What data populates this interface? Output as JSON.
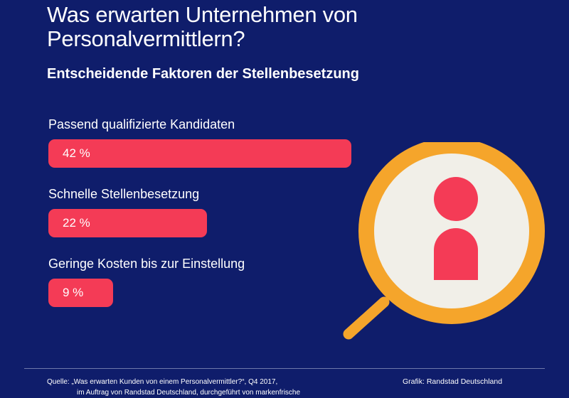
{
  "header": {
    "title": "Was erwarten Unternehmen von Personalvermittlern?",
    "subtitle": "Entscheidende Faktoren der Stellenbesetzung"
  },
  "colors": {
    "background": "#0f1d6b",
    "bar": "#f43b56",
    "lens_ring": "#f5a52b",
    "lens_fill": "#f1efe8",
    "person": "#f43b56"
  },
  "icons": {
    "magnifier": "magnifying-glass-icon",
    "person": "person-icon"
  },
  "chart_data": {
    "type": "bar",
    "orientation": "horizontal",
    "unit": "%",
    "xlim": [
      0,
      42
    ],
    "categories": [
      "Passend qualifizierte Kandidaten",
      "Schnelle Stellenbesetzung",
      "Geringe Kosten bis zur Einstellung"
    ],
    "values": [
      42,
      22,
      9
    ],
    "value_labels": [
      "42 %",
      "22 %",
      "9 %"
    ],
    "title": "Was erwarten Unternehmen von Personalvermittlern?",
    "subtitle": "Entscheidende Faktoren der Stellenbesetzung",
    "grid": false
  },
  "footer": {
    "source_line1": "Quelle: „Was erwarten Kunden von einem Personalvermittler?“, Q4 2017,",
    "source_line2": "im Auftrag von Randstad Deutschland, durchgeführt von markenfrische",
    "credit": "Grafik: Randstad Deutschland"
  }
}
